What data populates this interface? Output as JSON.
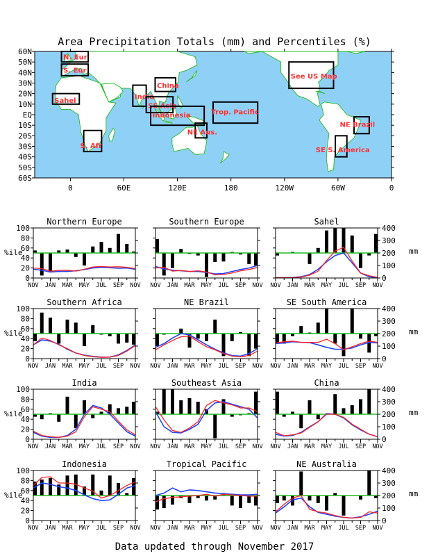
{
  "page": {
    "title": "Area Precipitation Totals (mm) and Percentiles (%)",
    "footer": "Data updated through November 2017"
  },
  "map": {
    "lat_labels": [
      "60N",
      "50N",
      "40N",
      "30N",
      "20N",
      "10N",
      "EQ",
      "10S",
      "20S",
      "30S",
      "40S",
      "50S",
      "60S"
    ],
    "lon_labels": [
      "0",
      "60E",
      "120E",
      "180",
      "120W",
      "60W",
      "0"
    ],
    "regions": [
      {
        "label": "N. Eur"
      },
      {
        "label": "S. Eur"
      },
      {
        "label": "Sahel"
      },
      {
        "label": "India"
      },
      {
        "label": "China"
      },
      {
        "label": "SE Asia"
      },
      {
        "label": "Indonesia"
      },
      {
        "label": "Trop. Pacific"
      },
      {
        "label": "NE Aus."
      },
      {
        "label": "S. Afr"
      },
      {
        "label": "See US Map"
      },
      {
        "label": "NE Brazil"
      },
      {
        "label": "SE S. America"
      }
    ],
    "colors": {
      "ocean": "#8fd0f7",
      "land": "#ffffff",
      "coast": "#22bb22",
      "box": "#000000",
      "label": "#ff3333"
    }
  },
  "panel_axes": {
    "pct_ticks": [
      "0",
      "20",
      "40",
      "60",
      "80",
      "100"
    ],
    "mm_ticks": [
      "0",
      "100",
      "200",
      "300",
      "400"
    ],
    "pct_label": "%ile",
    "mm_label": "mm",
    "month_labels": [
      "NOV",
      "JAN",
      "MAR",
      "MAY",
      "JUL",
      "SEP",
      "NOV"
    ],
    "colors": {
      "bars": "#000000",
      "actual": "#ff2222",
      "normal": "#2244ff",
      "median_line": "#22bb22"
    }
  },
  "chart_data": [
    {
      "type": "bar",
      "title": "Northern Europe",
      "ylim_pct": [
        0,
        100
      ],
      "ylim_mm": [
        0,
        400
      ],
      "percentiles": [
        55,
        5,
        12,
        55,
        57,
        42,
        25,
        63,
        72,
        60,
        88,
        68,
        53
      ],
      "actual_mm": [
        80,
        75,
        55,
        60,
        62,
        55,
        70,
        88,
        92,
        88,
        90,
        85,
        75
      ],
      "normal_mm": [
        70,
        62,
        48,
        52,
        52,
        58,
        68,
        80,
        85,
        82,
        78,
        80,
        70
      ]
    },
    {
      "type": "bar",
      "title": "Southern Europe",
      "ylim_pct": [
        0,
        100
      ],
      "ylim_mm": [
        0,
        400
      ],
      "percentiles": [
        78,
        5,
        20,
        58,
        48,
        45,
        2,
        32,
        33,
        52,
        47,
        28,
        25
      ],
      "actual_mm": [
        80,
        85,
        55,
        60,
        52,
        58,
        48,
        25,
        28,
        40,
        58,
        68,
        85
      ],
      "normal_mm": [
        92,
        72,
        62,
        58,
        52,
        52,
        45,
        32,
        36,
        52,
        68,
        80,
        100
      ]
    },
    {
      "type": "bar",
      "title": "Sahel",
      "ylim_pct": [
        0,
        100
      ],
      "ylim_mm": [
        0,
        400
      ],
      "percentiles": [
        45,
        50,
        52,
        50,
        28,
        60,
        95,
        100,
        100,
        85,
        20,
        45,
        88
      ],
      "actual_mm": [
        3,
        2,
        3,
        8,
        22,
        55,
        140,
        215,
        245,
        135,
        40,
        18,
        5
      ],
      "normal_mm": [
        3,
        2,
        4,
        10,
        28,
        70,
        130,
        180,
        200,
        120,
        40,
        10,
        4
      ]
    },
    {
      "type": "bar",
      "title": "Southern Africa",
      "ylim_pct": [
        0,
        100
      ],
      "ylim_mm": [
        0,
        400
      ],
      "percentiles": [
        35,
        92,
        82,
        30,
        78,
        72,
        25,
        67,
        48,
        45,
        30,
        32,
        28
      ],
      "actual_mm": [
        110,
        165,
        145,
        110,
        80,
        45,
        25,
        15,
        10,
        12,
        25,
        60,
        105
      ],
      "normal_mm": [
        110,
        150,
        140,
        115,
        75,
        45,
        28,
        18,
        12,
        12,
        30,
        65,
        110
      ]
    },
    {
      "type": "bar",
      "title": "NE Brazil",
      "ylim_pct": [
        0,
        100
      ],
      "ylim_mm": [
        0,
        400
      ],
      "percentiles": [
        25,
        48,
        50,
        60,
        22,
        40,
        35,
        78,
        5,
        35,
        53,
        5,
        20
      ],
      "actual_mm": [
        70,
        110,
        145,
        175,
        180,
        135,
        95,
        70,
        40,
        20,
        15,
        25,
        60
      ],
      "normal_mm": [
        90,
        120,
        165,
        200,
        190,
        150,
        110,
        75,
        45,
        25,
        20,
        40,
        80
      ]
    },
    {
      "type": "bar",
      "title": "SE South America",
      "ylim_pct": [
        0,
        100
      ],
      "ylim_mm": [
        0,
        400
      ],
      "percentiles": [
        30,
        30,
        45,
        65,
        52,
        72,
        100,
        30,
        5,
        100,
        40,
        12,
        45
      ],
      "actual_mm": [
        125,
        135,
        140,
        130,
        130,
        130,
        155,
        120,
        70,
        95,
        120,
        140,
        130
      ],
      "normal_mm": [
        120,
        125,
        135,
        130,
        128,
        110,
        90,
        75,
        75,
        85,
        110,
        130,
        125
      ]
    },
    {
      "type": "bar",
      "title": "India",
      "ylim_pct": [
        0,
        100
      ],
      "ylim_mm": [
        0,
        400
      ],
      "percentiles": [
        45,
        40,
        52,
        35,
        85,
        22,
        78,
        42,
        55,
        70,
        62,
        65,
        75
      ],
      "actual_mm": [
        65,
        30,
        20,
        15,
        25,
        60,
        180,
        260,
        240,
        220,
        145,
        75,
        35
      ],
      "normal_mm": [
        55,
        25,
        15,
        15,
        30,
        80,
        200,
        270,
        250,
        200,
        130,
        60,
        25
      ]
    },
    {
      "type": "bar",
      "title": "Southeast Asia",
      "ylim_pct": [
        0,
        100
      ],
      "ylim_mm": [
        0,
        400
      ],
      "percentiles": [
        55,
        100,
        100,
        78,
        82,
        75,
        60,
        2,
        80,
        45,
        48,
        52,
        95
      ],
      "actual_mm": [
        260,
        155,
        70,
        55,
        90,
        140,
        270,
        310,
        290,
        275,
        250,
        250,
        220
      ],
      "normal_mm": [
        220,
        100,
        55,
        50,
        80,
        120,
        230,
        290,
        300,
        280,
        260,
        240,
        170
      ]
    },
    {
      "type": "bar",
      "title": "China",
      "ylim_pct": [
        0,
        100
      ],
      "ylim_mm": [
        0,
        400
      ],
      "percentiles": [
        95,
        45,
        55,
        22,
        78,
        40,
        50,
        90,
        62,
        68,
        80,
        100,
        50
      ],
      "actual_mm": [
        55,
        28,
        35,
        50,
        95,
        140,
        200,
        200,
        175,
        120,
        80,
        40,
        20
      ],
      "normal_mm": [
        40,
        25,
        30,
        55,
        100,
        140,
        205,
        200,
        170,
        115,
        75,
        40,
        20
      ]
    },
    {
      "type": "bar",
      "title": "Indonesia",
      "ylim_pct": [
        0,
        100
      ],
      "ylim_mm": [
        0,
        400
      ],
      "percentiles": [
        78,
        82,
        85,
        72,
        90,
        92,
        68,
        92,
        60,
        90,
        75,
        55,
        85
      ],
      "actual_mm": [
        280,
        345,
        350,
        300,
        300,
        290,
        260,
        235,
        180,
        200,
        240,
        280,
        310
      ],
      "normal_mm": [
        260,
        300,
        290,
        270,
        260,
        240,
        205,
        175,
        160,
        165,
        210,
        260,
        280
      ]
    },
    {
      "type": "bar",
      "title": "Tropical Pacific",
      "ylim_pct": [
        0,
        100
      ],
      "ylim_mm": [
        0,
        400
      ],
      "percentiles": [
        22,
        25,
        32,
        45,
        35,
        45,
        40,
        42,
        55,
        30,
        25,
        35,
        30
      ],
      "actual_mm": [
        150,
        175,
        185,
        190,
        195,
        200,
        210,
        195,
        210,
        205,
        200,
        195,
        195
      ],
      "normal_mm": [
        200,
        220,
        260,
        230,
        245,
        240,
        230,
        220,
        215,
        210,
        205,
        205,
        210
      ]
    },
    {
      "type": "bar",
      "title": "NE Australia",
      "ylim_pct": [
        0,
        100
      ],
      "ylim_mm": [
        0,
        400
      ],
      "percentiles": [
        35,
        40,
        30,
        98,
        40,
        35,
        20,
        55,
        10,
        50,
        42,
        100,
        45
      ],
      "actual_mm": [
        70,
        130,
        180,
        200,
        90,
        70,
        60,
        40,
        25,
        20,
        25,
        70,
        60
      ],
      "normal_mm": [
        60,
        110,
        165,
        180,
        110,
        65,
        50,
        35,
        25,
        20,
        30,
        50,
        75
      ]
    }
  ]
}
